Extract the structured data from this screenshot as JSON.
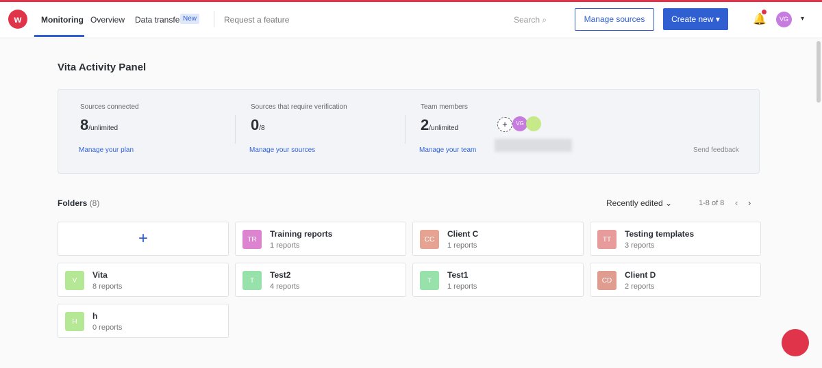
{
  "nav": {
    "items": [
      "Monitoring",
      "Overview",
      "Data transfer"
    ],
    "badge": "New",
    "request": "Request a feature",
    "search": "Search",
    "manage_sources": "Manage sources",
    "create_new": "Create new",
    "avatar": "VG"
  },
  "panel": {
    "title": "Vita Activity Panel",
    "stats": [
      {
        "label": "Sources connected",
        "value": "8",
        "unit": "/unlimited",
        "link": "Manage your plan"
      },
      {
        "label": "Sources that require verification",
        "value": "0",
        "unit": "/8",
        "link": "Manage your sources"
      },
      {
        "label": "Team members",
        "value": "2",
        "unit": "/unlimited",
        "link": "Manage your team"
      }
    ],
    "team_avatar": "VG",
    "feedback": "Send feedback"
  },
  "folders": {
    "title": "Folders",
    "count": "(8)",
    "sort": "Recently edited",
    "range": "1-8 of 8",
    "items": [
      {
        "initials": "TR",
        "name": "Training reports",
        "reports": "1 reports",
        "color": "#d86fc9"
      },
      {
        "initials": "CC",
        "name": "Client C",
        "reports": "1 reports",
        "color": "#e39480"
      },
      {
        "initials": "TT",
        "name": "Testing templates",
        "reports": "3 reports",
        "color": "#e38a8a"
      },
      {
        "initials": "V",
        "name": "Vita",
        "reports": "8 reports",
        "color": "#a9e483"
      },
      {
        "initials": "T",
        "name": "Test2",
        "reports": "4 reports",
        "color": "#84de9c"
      },
      {
        "initials": "T",
        "name": "Test1",
        "reports": "1 reports",
        "color": "#84de9c"
      },
      {
        "initials": "CD",
        "name": "Client D",
        "reports": "2 reports",
        "color": "#dc8b7d"
      },
      {
        "initials": "H",
        "name": "h",
        "reports": "0 reports",
        "color": "#a9e483"
      }
    ]
  }
}
